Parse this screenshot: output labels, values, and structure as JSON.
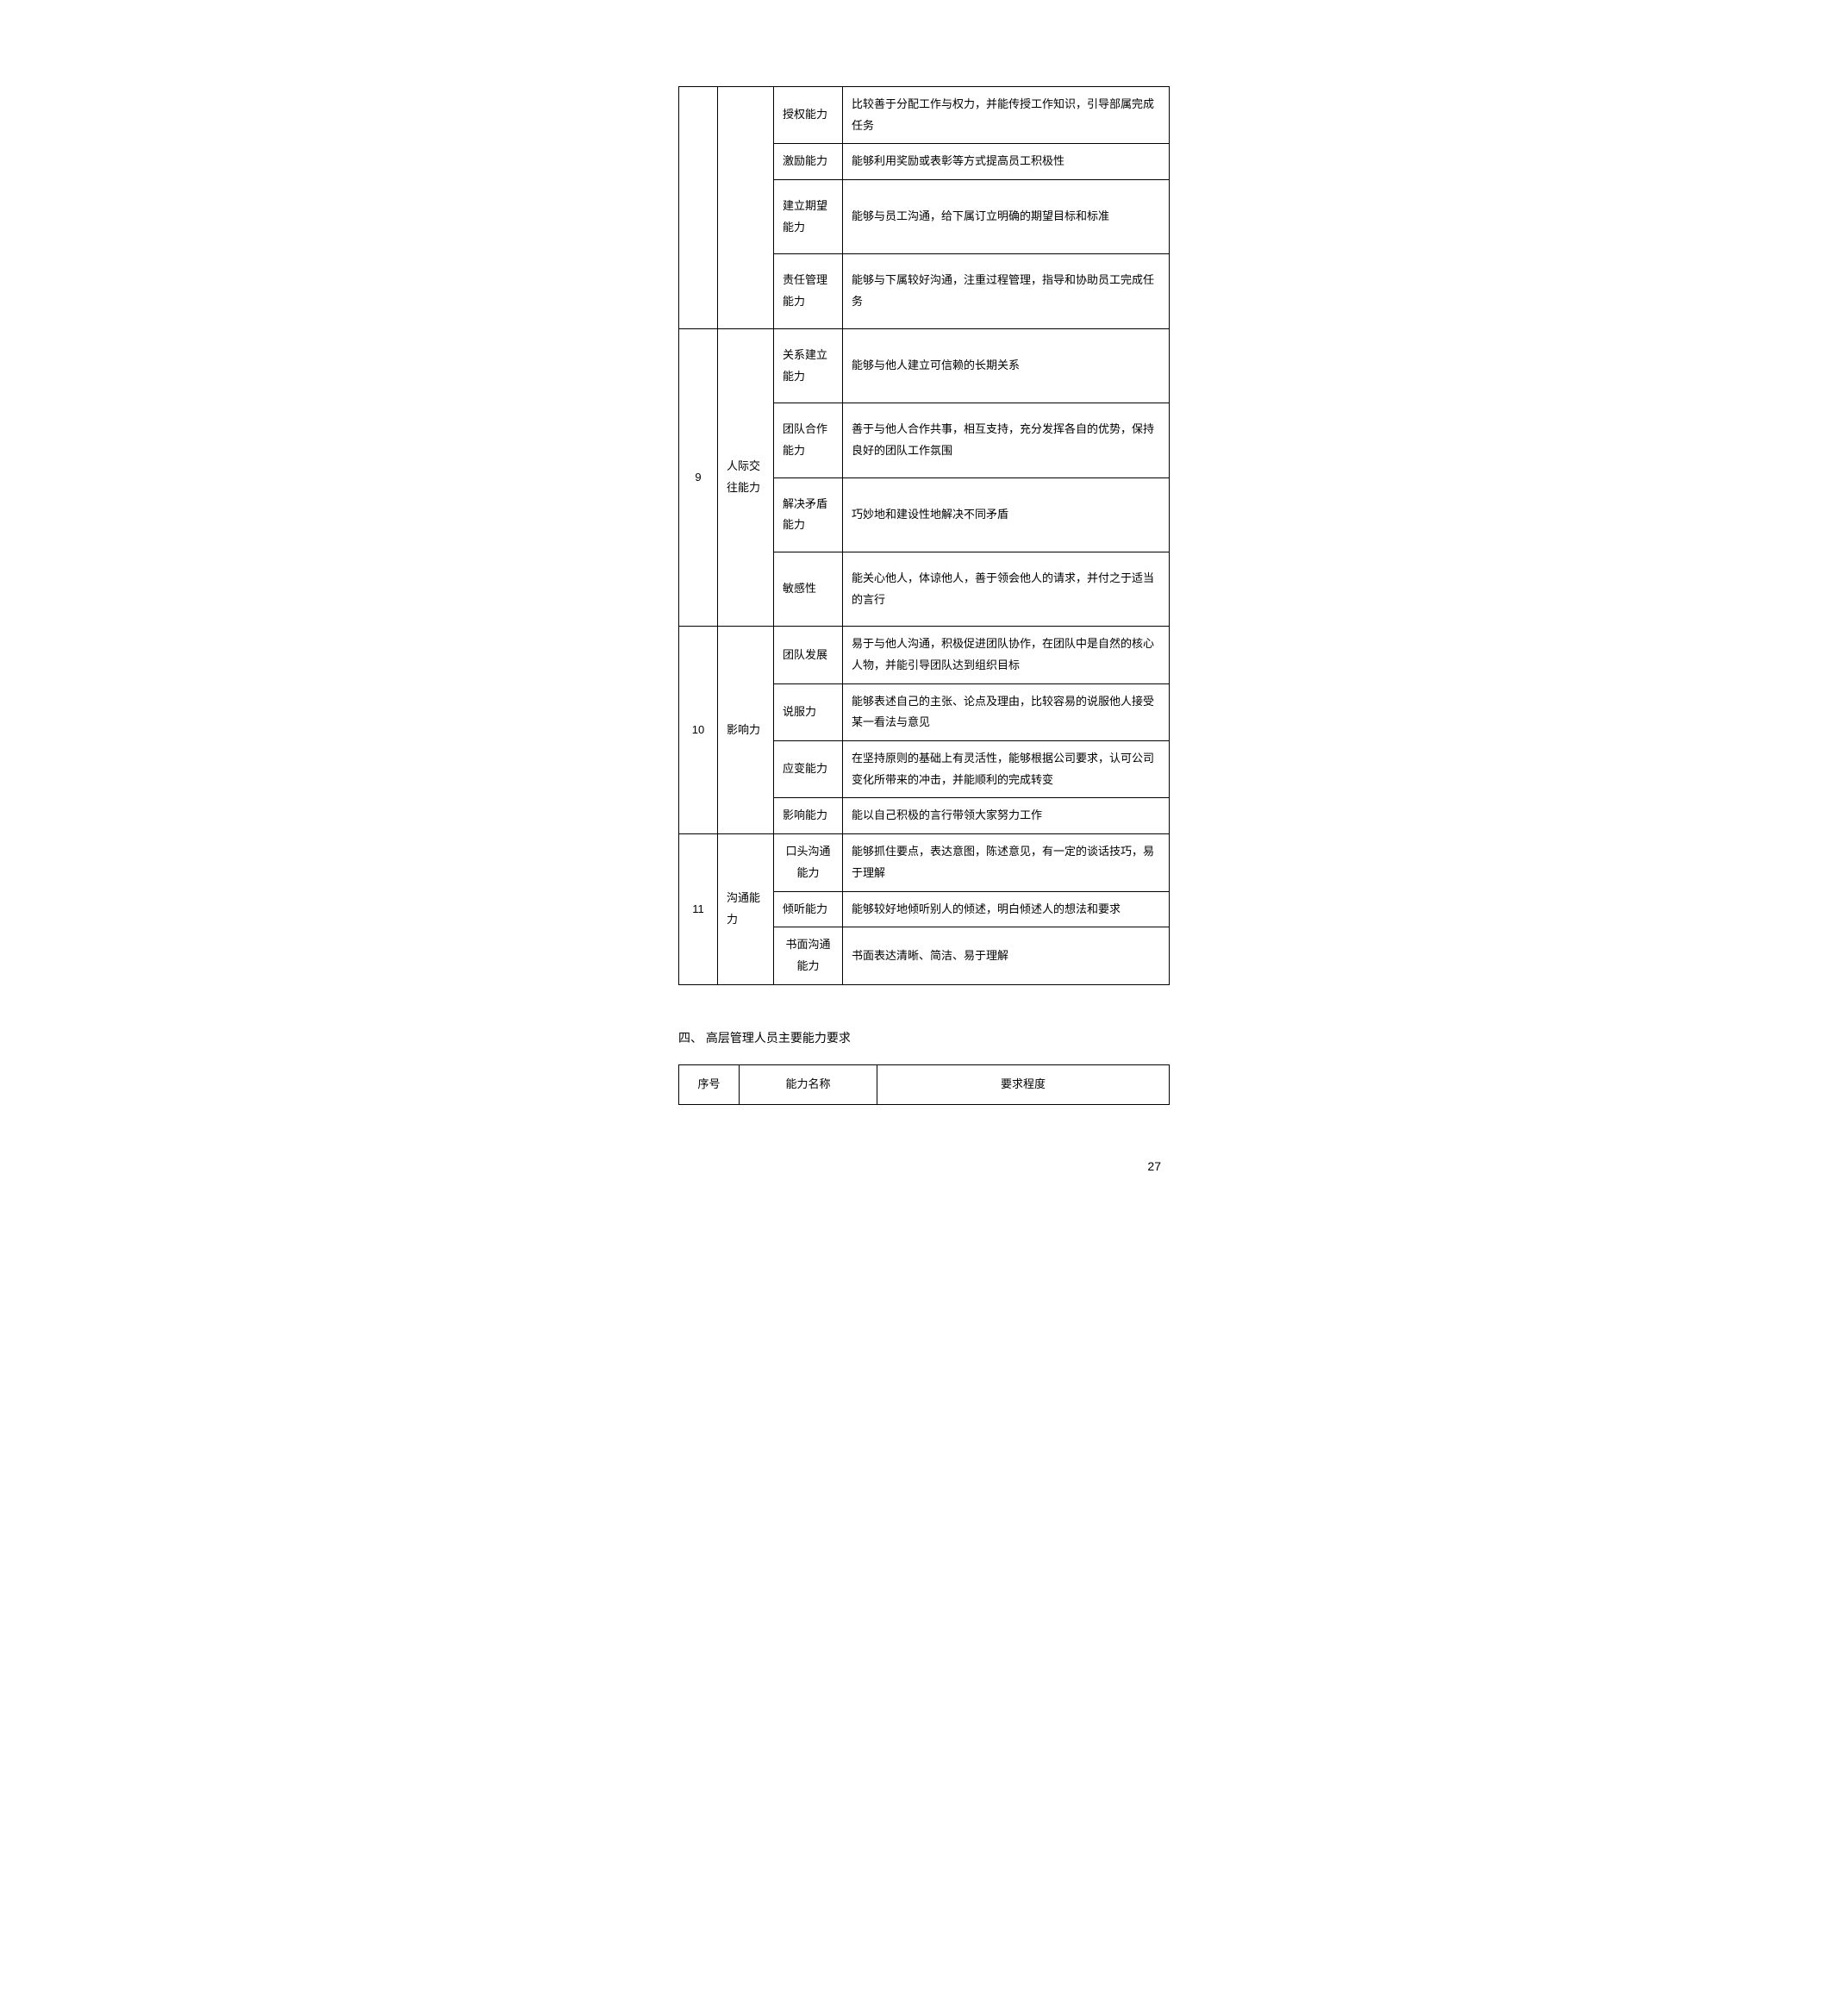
{
  "table1": {
    "rows": [
      {
        "num": "",
        "cat": "",
        "ability": "授权能力",
        "desc": "比较善于分配工作与权力，并能传授工作知识，引导部属完成任务",
        "catRowspan": 4,
        "numRowspan": 4,
        "hideNumCat": false
      },
      {
        "ability": "激励能力",
        "desc": "能够利用奖励或表彰等方式提高员工积极性"
      },
      {
        "ability": "建立期望能力",
        "desc": "能够与员工沟通，给下属订立明确的期望目标和标准",
        "tall": true
      },
      {
        "ability": "责任管理能力",
        "desc": "能够与下属较好沟通，注重过程管理，指导和协助员工完成任务",
        "tall": true
      },
      {
        "num": "9",
        "cat": "人际交往能力",
        "ability": "关系建立能力",
        "desc": "能够与他人建立可信赖的长期关系",
        "catRowspan": 4,
        "numRowspan": 4,
        "tall": true
      },
      {
        "ability": "团队合作能力",
        "desc": "善于与他人合作共事，相互支持，充分发挥各自的优势，保持良好的团队工作氛围",
        "tall": true
      },
      {
        "ability": "解决矛盾能力",
        "desc": "巧妙地和建设性地解决不同矛盾",
        "tall": true
      },
      {
        "ability": "敏感性",
        "desc": "能关心他人，体谅他人，善于领会他人的请求，并付之于适当的言行",
        "tall": true
      },
      {
        "num": "10",
        "cat": "影响力",
        "ability": "团队发展",
        "desc": "易于与他人沟通，积极促进团队协作，在团队中是自然的核心人物，并能引导团队达到组织目标",
        "catRowspan": 4,
        "numRowspan": 4
      },
      {
        "ability": "说服力",
        "desc": "能够表述自己的主张、论点及理由，比较容易的说服他人接受某一看法与意见"
      },
      {
        "ability": "应变能力",
        "desc": "在坚持原则的基础上有灵活性，能够根据公司要求，认可公司变化所带来的冲击，并能顺利的完成转变"
      },
      {
        "ability": "影响能力",
        "desc": "能以自己积极的言行带领大家努力工作"
      },
      {
        "num": "11",
        "cat": "沟通能力",
        "ability": "口头沟通能力",
        "desc": "能够抓住要点，表达意图，陈述意见，有一定的谈话技巧，易于理解",
        "catRowspan": 3,
        "numRowspan": 3,
        "abilityCenter": true
      },
      {
        "ability": "倾听能力",
        "desc": "能够较好地倾听别人的倾述，明白倾述人的想法和要求"
      },
      {
        "ability": "书面沟通能力",
        "desc": "书面表达清晰、简洁、易于理解",
        "abilityCenter": true
      }
    ]
  },
  "sectionHeading": "四、 高层管理人员主要能力要求",
  "table2": {
    "headers": {
      "num": "序号",
      "name": "能力名称",
      "req": "要求程度"
    }
  },
  "pageNumber": "27"
}
